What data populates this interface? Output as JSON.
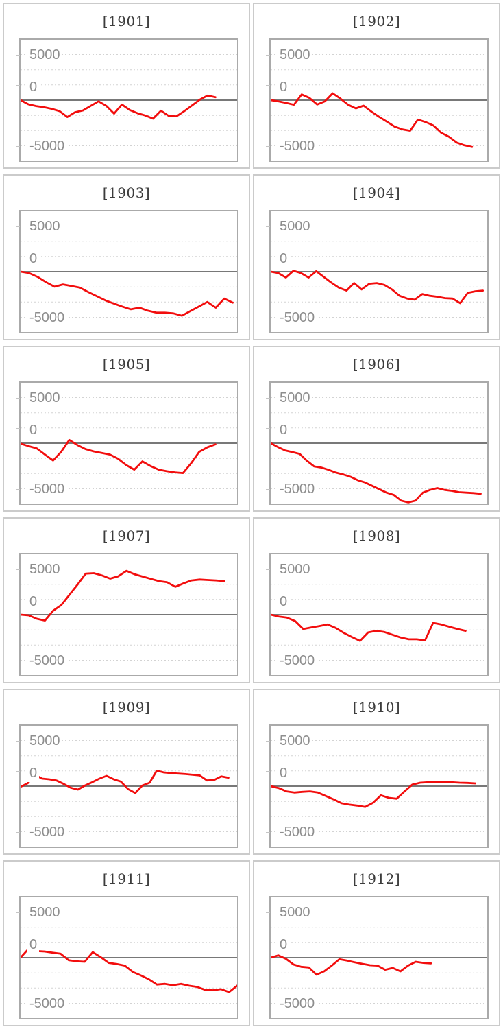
{
  "page": {
    "background": "#ffffff"
  },
  "style": {
    "series_color": "#f20d0d",
    "grid_color": "#d3d3d3",
    "zero_line_color": "#787878",
    "plot_border_color": "#aaaaaa",
    "panel_border_color": "#cbcbcb",
    "title_color": "#3c3c3c",
    "axis_label_color": "#8e8e8e"
  },
  "axis": {
    "yticks": [
      "5000",
      "0",
      "-5000"
    ],
    "ytick_values": [
      5000,
      0,
      -5000
    ],
    "ylim": [
      -6580,
      6580
    ],
    "grid_interval": 1667,
    "grid": "horizontal-dashed",
    "zero_line": "solid"
  },
  "chart_data": [
    {
      "type": "line",
      "title": "[1901]",
      "end_frac": 0.9,
      "values": [
        0,
        -450,
        -650,
        -775,
        -950,
        -1200,
        -1850,
        -1325,
        -1125,
        -625,
        -125,
        -625,
        -1475,
        -475,
        -1075,
        -1425,
        -1675,
        -2025,
        -1150,
        -1725,
        -1775,
        -1200,
        -575,
        50,
        500,
        325
      ]
    },
    {
      "type": "line",
      "title": "[1902]",
      "end_frac": 0.93,
      "values": [
        0,
        -125,
        -300,
        -500,
        625,
        250,
        -475,
        -125,
        750,
        175,
        -500,
        -900,
        -600,
        -1250,
        -1825,
        -2350,
        -2900,
        -3200,
        -3350,
        -2125,
        -2400,
        -2775,
        -3575,
        -4000,
        -4650,
        -4950,
        -5125
      ]
    },
    {
      "type": "line",
      "title": "[1903]",
      "end_frac": 0.98,
      "values": [
        0,
        -150,
        -575,
        -1150,
        -1650,
        -1400,
        -1575,
        -1750,
        -2250,
        -2700,
        -3150,
        -3500,
        -3825,
        -4125,
        -3950,
        -4275,
        -4500,
        -4500,
        -4575,
        -4825,
        -4325,
        -3825,
        -3325,
        -3950,
        -2950,
        -3400
      ]
    },
    {
      "type": "line",
      "title": "[1904]",
      "end_frac": 0.98,
      "values": [
        0,
        -150,
        -650,
        100,
        -150,
        -650,
        50,
        -575,
        -1200,
        -1750,
        -2075,
        -1250,
        -1950,
        -1325,
        -1250,
        -1450,
        -1950,
        -2650,
        -2950,
        -3075,
        -2450,
        -2650,
        -2750,
        -2900,
        -2950,
        -3450,
        -2325,
        -2150,
        -2075
      ]
    },
    {
      "type": "line",
      "title": "[1905]",
      "end_frac": 0.9,
      "values": [
        -50,
        -325,
        -575,
        -1250,
        -1900,
        -950,
        350,
        -200,
        -650,
        -900,
        -1075,
        -1250,
        -1700,
        -2400,
        -2900,
        -2000,
        -2500,
        -2900,
        -3075,
        -3200,
        -3275,
        -2200,
        -950,
        -450,
        -125
      ]
    },
    {
      "type": "line",
      "title": "[1906]",
      "end_frac": 0.97,
      "values": [
        0,
        -425,
        -800,
        -975,
        -1175,
        -1925,
        -2550,
        -2675,
        -2925,
        -3225,
        -3425,
        -3675,
        -4050,
        -4300,
        -4675,
        -5050,
        -5425,
        -5675,
        -6300,
        -6500,
        -6300,
        -5425,
        -5125,
        -4925,
        -5125,
        -5225,
        -5375,
        -5425,
        -5475,
        -5550
      ]
    },
    {
      "type": "line",
      "title": "[1907]",
      "end_frac": 0.94,
      "values": [
        0,
        -75,
        -450,
        -650,
        425,
        1050,
        2175,
        3300,
        4500,
        4550,
        4300,
        3950,
        4200,
        4800,
        4425,
        4175,
        3925,
        3675,
        3550,
        3050,
        3425,
        3750,
        3850,
        3800,
        3750,
        3675
      ]
    },
    {
      "type": "line",
      "title": "[1908]",
      "end_frac": 0.9,
      "values": [
        0,
        -200,
        -325,
        -700,
        -1575,
        -1400,
        -1250,
        -1075,
        -1450,
        -2000,
        -2450,
        -2875,
        -1950,
        -1775,
        -1900,
        -2200,
        -2500,
        -2700,
        -2700,
        -2825,
        -900,
        -1075,
        -1325,
        -1575,
        -1775
      ]
    },
    {
      "type": "line",
      "title": "[1909]",
      "end_frac": 0.96,
      "values": [
        -75,
        325,
        1250,
        825,
        750,
        625,
        250,
        -175,
        -375,
        75,
        425,
        825,
        1125,
        750,
        500,
        -325,
        -750,
        75,
        375,
        1700,
        1500,
        1425,
        1375,
        1325,
        1250,
        1175,
        625,
        675,
        1075,
        925
      ]
    },
    {
      "type": "line",
      "title": "[1910]",
      "end_frac": 0.945,
      "values": [
        0,
        -200,
        -575,
        -700,
        -625,
        -575,
        -700,
        -1075,
        -1450,
        -1875,
        -2025,
        -2125,
        -2275,
        -1825,
        -1000,
        -1275,
        -1375,
        -575,
        175,
        375,
        425,
        475,
        475,
        425,
        375,
        350,
        300
      ]
    },
    {
      "type": "line",
      "title": "[1911]",
      "end_frac": 1.0,
      "values": [
        0,
        975,
        725,
        675,
        550,
        425,
        -275,
        -400,
        -450,
        600,
        50,
        -575,
        -700,
        -875,
        -1575,
        -1950,
        -2375,
        -2950,
        -2875,
        -3025,
        -2875,
        -3075,
        -3200,
        -3525,
        -3575,
        -3450,
        -3775,
        -3075
      ]
    },
    {
      "type": "line",
      "title": "[1912]",
      "end_frac": 0.74,
      "values": [
        0,
        250,
        -125,
        -750,
        -1000,
        -1075,
        -1875,
        -1500,
        -875,
        -175,
        -325,
        -500,
        -675,
        -825,
        -875,
        -1325,
        -1125,
        -1500,
        -875,
        -450,
        -575,
        -625
      ]
    }
  ]
}
